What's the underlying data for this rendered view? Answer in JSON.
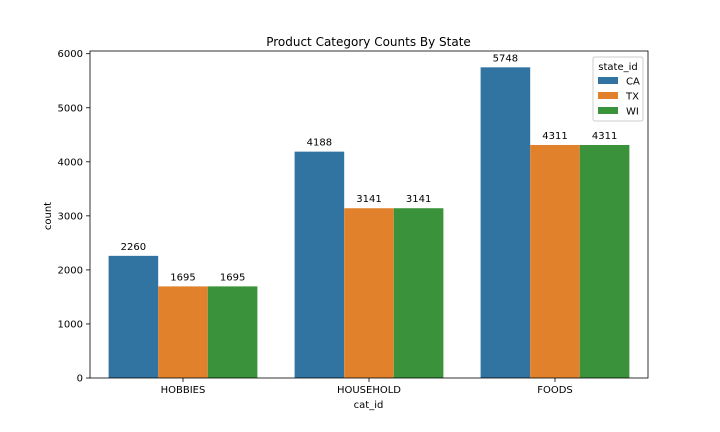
{
  "chart_data": {
    "type": "bar",
    "title": "Product Category Counts By State",
    "xlabel": "cat_id",
    "ylabel": "count",
    "categories": [
      "HOBBIES",
      "HOUSEHOLD",
      "FOODS"
    ],
    "series": [
      {
        "name": "CA",
        "values": [
          2260,
          4188,
          5748
        ],
        "color": "#3274a1"
      },
      {
        "name": "TX",
        "values": [
          1695,
          3141,
          4311
        ],
        "color": "#e1812c"
      },
      {
        "name": "WI",
        "values": [
          1695,
          3141,
          4311
        ],
        "color": "#3a923a"
      }
    ],
    "ylim": [
      0,
      6050
    ],
    "yticks": [
      0,
      1000,
      2000,
      3000,
      4000,
      5000,
      6000
    ],
    "grid": false,
    "legend": {
      "title": "state_id",
      "position": "top-right"
    }
  }
}
